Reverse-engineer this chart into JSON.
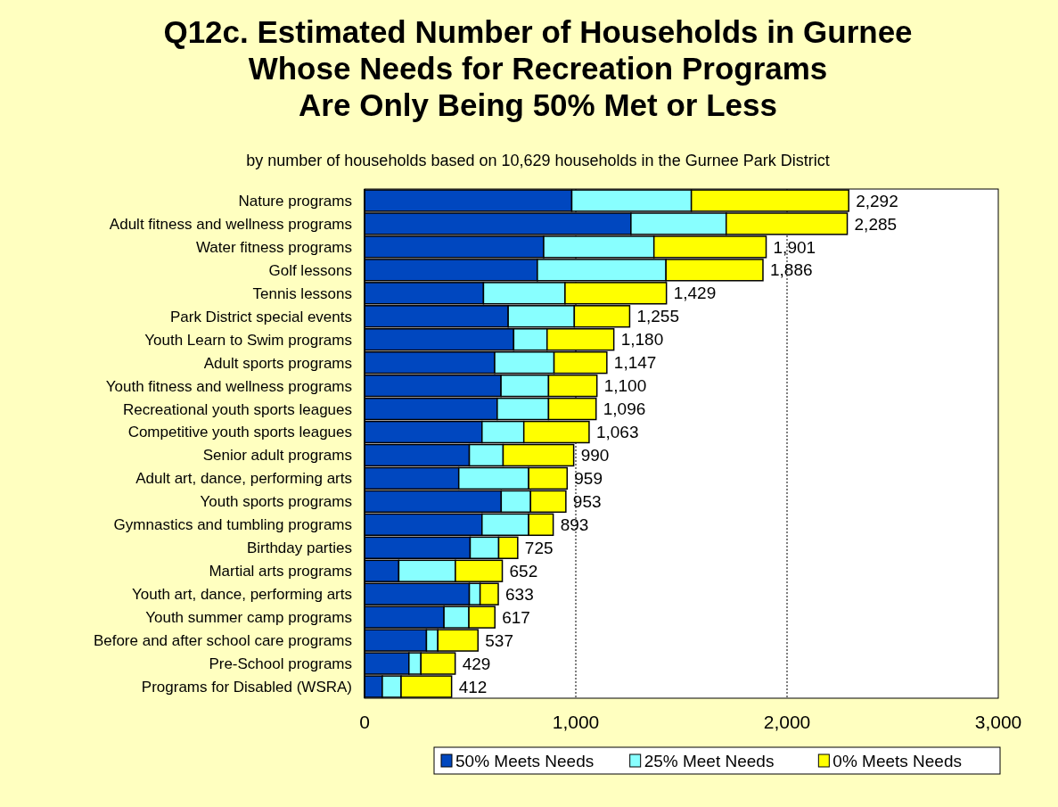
{
  "chart_data": {
    "type": "bar",
    "orientation": "horizontal",
    "stacked": true,
    "title": "Q12c. Estimated Number of Households in Gurnee\nWhose Needs for Recreation Programs\nAre Only Being 50% Met or Less",
    "subtitle": "by number of households based on 10,629 households in the Gurnee Park District",
    "categories": [
      "Nature programs",
      "Adult fitness and wellness programs",
      "Water fitness programs",
      "Golf lessons",
      "Tennis lessons",
      "Park District special events",
      "Youth Learn to Swim programs",
      "Adult sports programs",
      "Youth fitness and wellness programs",
      "Recreational youth sports leagues",
      "Competitive youth sports leagues",
      "Senior adult programs",
      "Adult art, dance, performing arts",
      "Youth sports programs",
      "Gymnastics and tumbling programs",
      "Birthday parties",
      "Martial arts programs",
      "Youth art, dance, performing arts",
      "Youth summer camp programs",
      "Before and after school care programs",
      "Pre-School programs",
      "Programs for Disabled (WSRA)"
    ],
    "series": [
      {
        "name": "50% Meets Needs",
        "color": "#0047bf",
        "values": [
          981,
          1261,
          848,
          818,
          563,
          680,
          706,
          616,
          646,
          628,
          556,
          496,
          446,
          647,
          556,
          500,
          162,
          496,
          376,
          293,
          210,
          84
        ]
      },
      {
        "name": "25% Meet Needs",
        "color": "#88ffff",
        "values": [
          566,
          451,
          522,
          609,
          386,
          313,
          158,
          281,
          225,
          243,
          198,
          160,
          331,
          139,
          221,
          135,
          268,
          51,
          118,
          54,
          57,
          89
        ]
      },
      {
        "name": "0% Meets Needs",
        "color": "#ffff00",
        "values": [
          745,
          573,
          531,
          459,
          480,
          262,
          316,
          250,
          229,
          225,
          309,
          334,
          182,
          167,
          116,
          90,
          222,
          86,
          123,
          190,
          162,
          239
        ]
      }
    ],
    "totals": [
      "2,292",
      "2,285",
      "1,901",
      "1,886",
      "1,429",
      "1,255",
      "1,180",
      "1,147",
      "1,100",
      "1,096",
      "1,063",
      "990",
      "959",
      "953",
      "893",
      "725",
      "652",
      "633",
      "617",
      "537",
      "429",
      "412"
    ],
    "xlim": [
      0,
      3000
    ],
    "xticks": [
      {
        "value": 0,
        "label": "0"
      },
      {
        "value": 1000,
        "label": "1,000"
      },
      {
        "value": 2000,
        "label": "2,000"
      },
      {
        "value": 3000,
        "label": "3,000"
      }
    ],
    "grid": "x",
    "legend": "bottom"
  }
}
